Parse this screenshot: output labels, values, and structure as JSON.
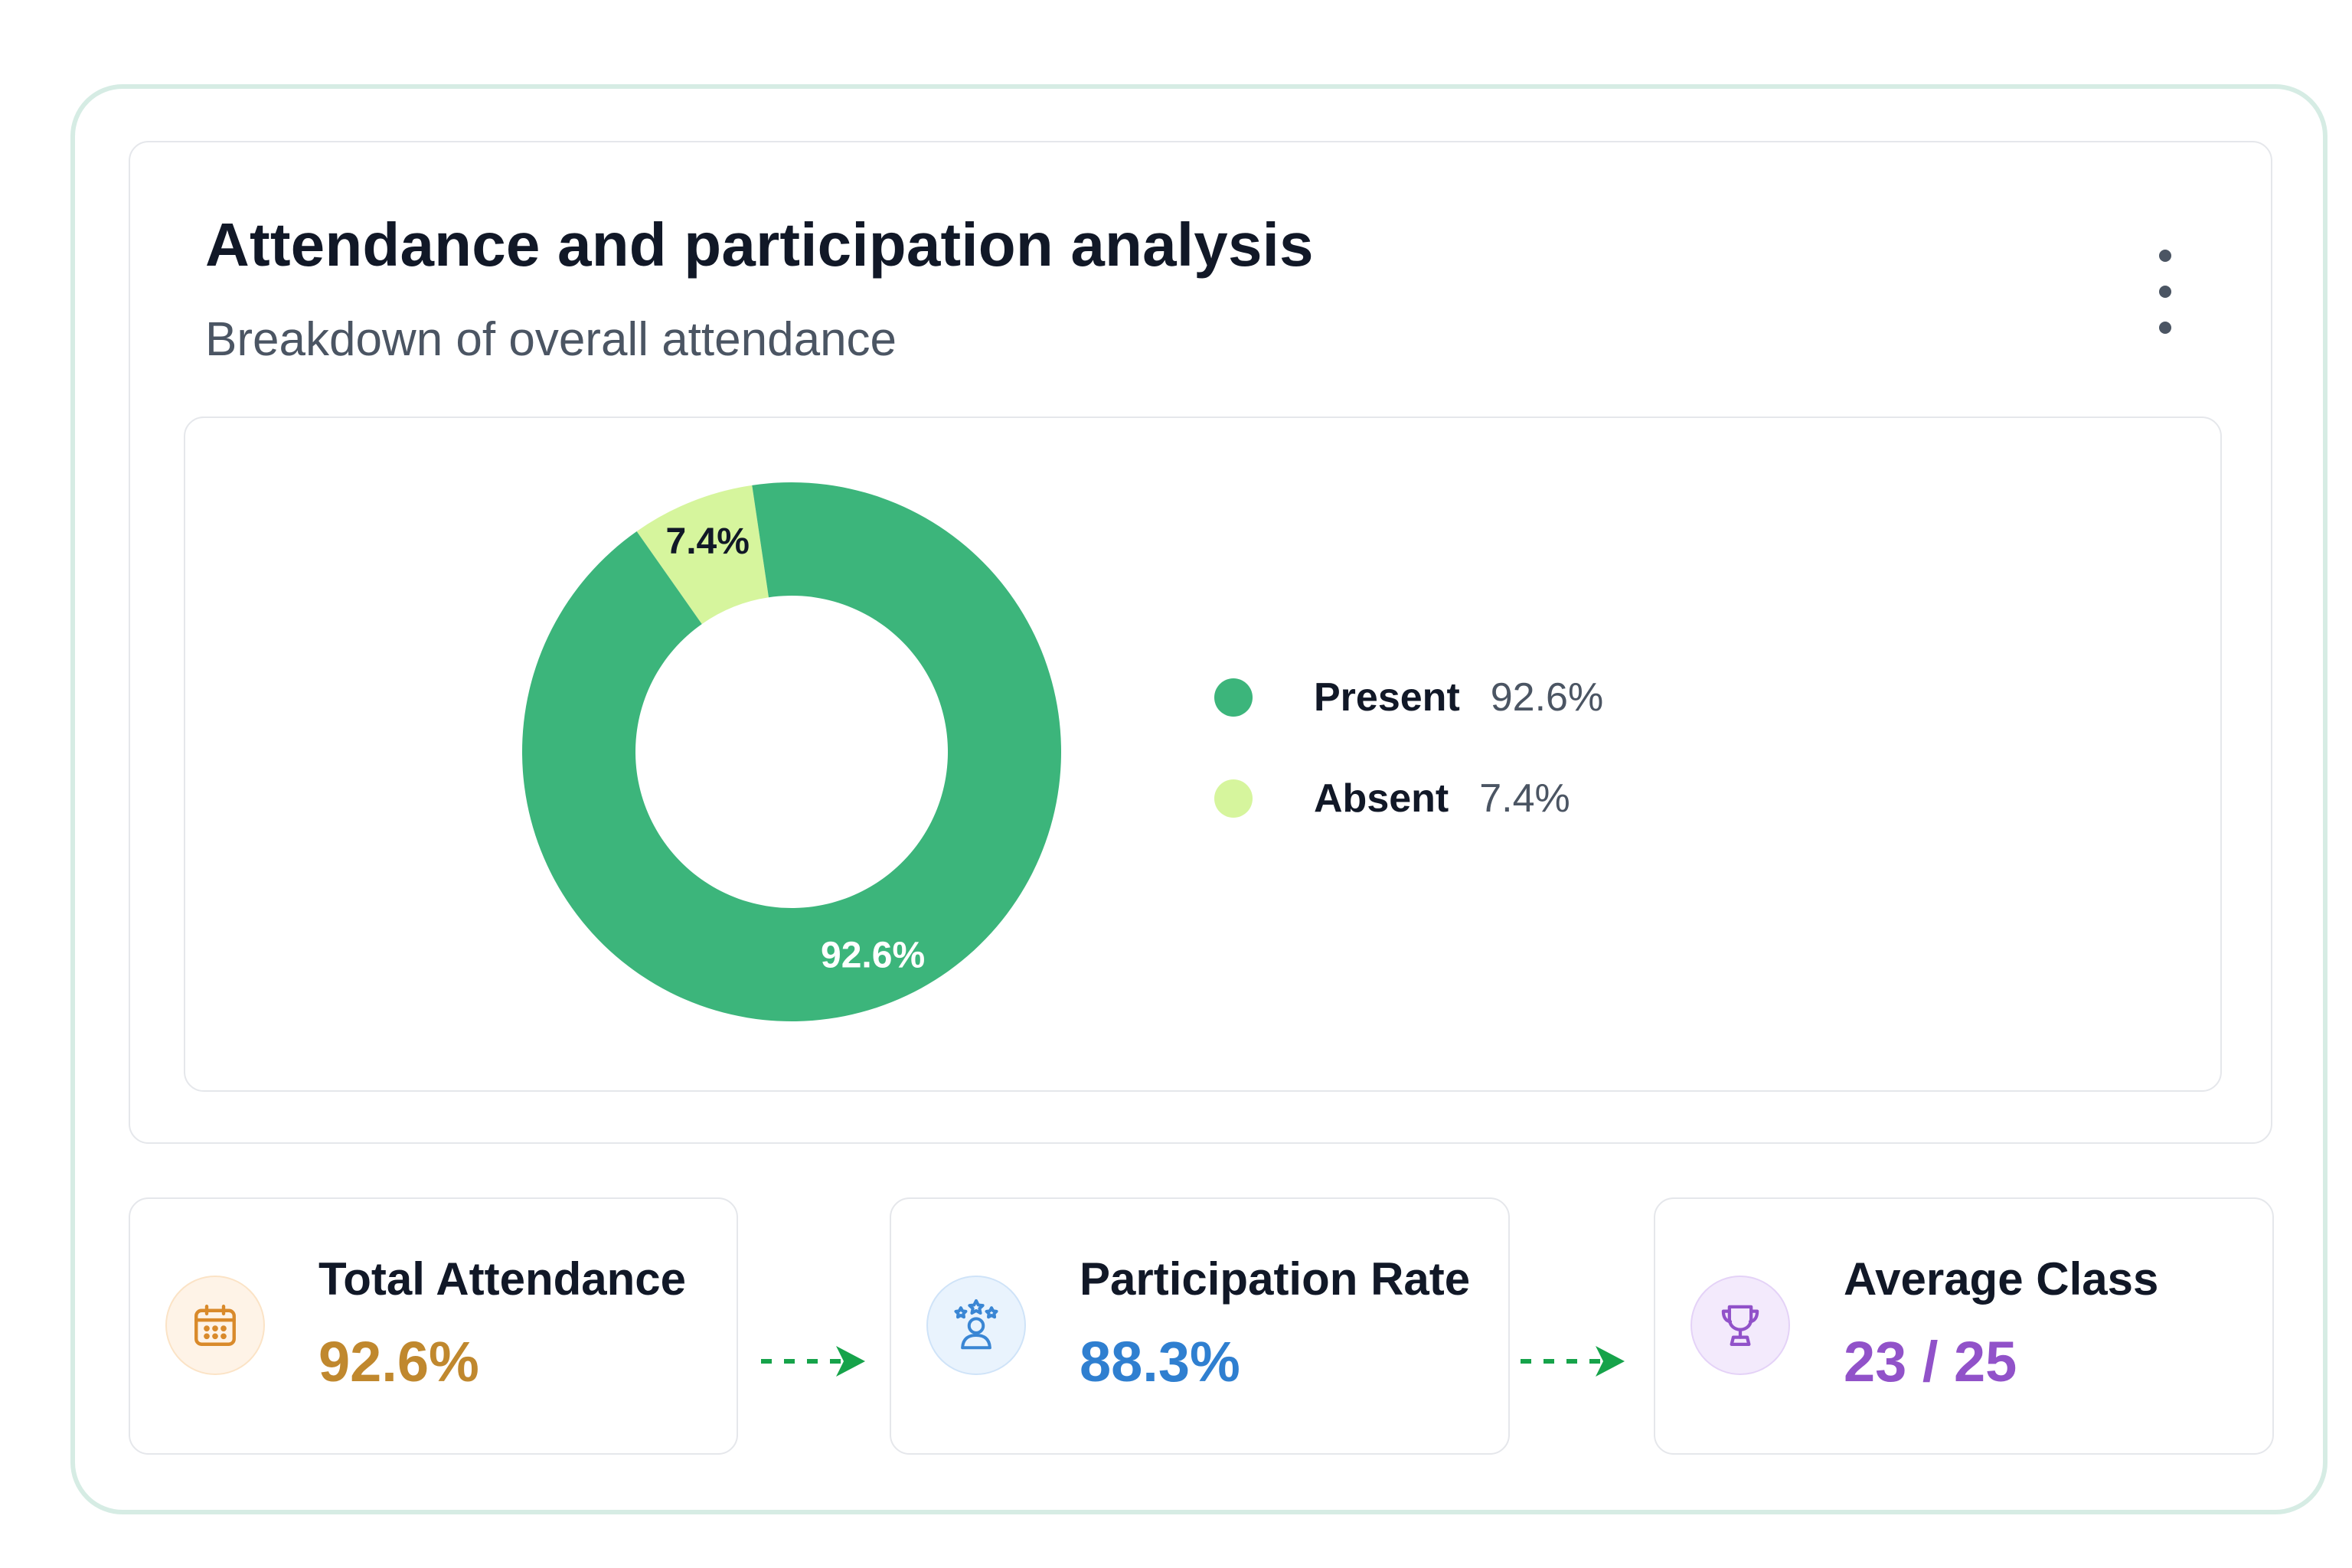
{
  "card": {
    "title": "Attendance and participation analysis",
    "subtitle": "Breakdown of overall attendance",
    "menu_icon": "more-vertical-icon"
  },
  "chart_data": {
    "type": "pie",
    "donut": true,
    "labels": [
      "Present",
      "Absent"
    ],
    "values": [
      92.6,
      7.4
    ],
    "display_values": [
      "92.6%",
      "7.4%"
    ],
    "colors": [
      "#3cb57b",
      "#d6f59d"
    ],
    "data_label_colors": [
      "#ffffff",
      "#111827"
    ],
    "legend_position": "right"
  },
  "legend": [
    {
      "name": "Present",
      "value": "92.6%",
      "color": "#3cb57b"
    },
    {
      "name": "Absent",
      "value": "7.4%",
      "color": "#d6f59d"
    }
  ],
  "stats": [
    {
      "label": "Total Attendance",
      "value": "92.6%",
      "color": "#c0882e",
      "icon": "calendar-icon",
      "icon_bg": "#fef3e7",
      "icon_border": "#fbe3c6"
    },
    {
      "label": "Participation Rate",
      "value": "88.3%",
      "color": "#2f7fd0",
      "icon": "user-stars-icon",
      "icon_bg": "#e9f3fd",
      "icon_border": "#cfe3f8"
    },
    {
      "label": "Average Class",
      "value": "23 / 25",
      "color": "#9152c9",
      "icon": "trophy-icon",
      "icon_bg": "#f3eafc",
      "icon_border": "#e4d2f7"
    }
  ],
  "arrows": {
    "color": "#16a34a",
    "icon": "dashed-arrow-right-icon"
  }
}
